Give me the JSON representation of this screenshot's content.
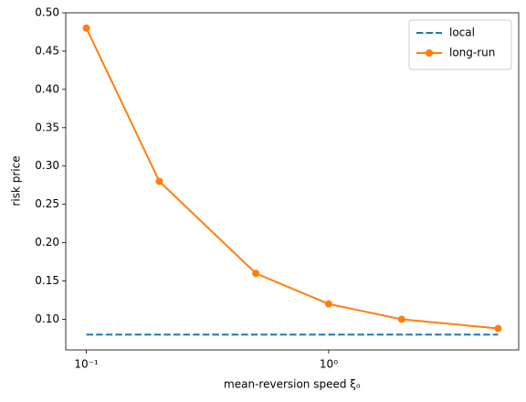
{
  "chart_data": {
    "type": "line",
    "x": [
      0.1,
      0.2,
      0.5,
      1,
      2,
      5
    ],
    "series": [
      {
        "name": "local",
        "color": "#1f77b4",
        "linestyle": "dashed",
        "values": [
          0.08,
          0.08,
          0.08,
          0.08,
          0.08,
          0.08
        ]
      },
      {
        "name": "long-run",
        "color": "#ff7f0e",
        "linestyle": "solid",
        "marker": "o",
        "values": [
          0.48,
          0.28,
          0.16,
          0.12,
          0.1,
          0.088
        ]
      }
    ],
    "xlabel": "mean-reversion speed ξₒ",
    "ylabel": "risk price",
    "xscale": "log",
    "xlim": [
      0.0822,
      6.08
    ],
    "xticks": [
      {
        "value": 0.1,
        "label": "10⁻¹"
      },
      {
        "value": 1,
        "label": "10⁰"
      }
    ],
    "ylim": [
      0.06,
      0.5
    ],
    "yticks": [
      {
        "value": 0.1,
        "label": "0.10"
      },
      0.15,
      {
        "value": 0.2,
        "label": "0.20"
      },
      0.25,
      {
        "value": 0.3,
        "label": "0.30"
      },
      0.35,
      {
        "value": 0.4,
        "label": "0.40"
      },
      0.45,
      {
        "value": 0.5,
        "label": "0.50"
      }
    ],
    "legend": "upper right"
  }
}
